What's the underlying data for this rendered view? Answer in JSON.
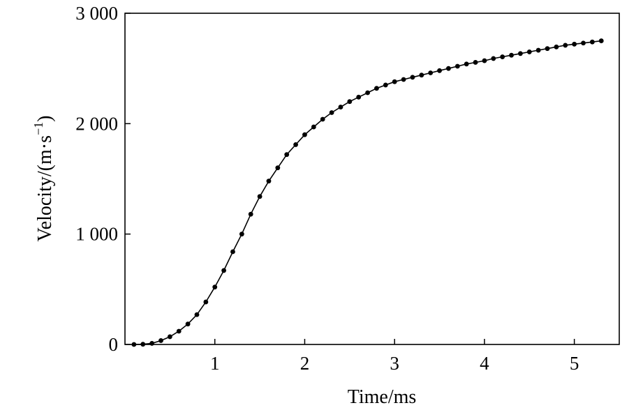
{
  "chart_data": {
    "type": "line",
    "title": "",
    "xlabel": "Time/ms",
    "ylabel": "Velocity/(m·s",
    "ylabel_sup": "−1",
    "ylabel_close": ")",
    "xlim": [
      0,
      5.5
    ],
    "ylim": [
      0,
      3000
    ],
    "x_ticks": [
      1,
      2,
      3,
      4,
      5
    ],
    "x_tick_labels": [
      "1",
      "2",
      "3",
      "4",
      "5"
    ],
    "y_ticks": [
      0,
      1000,
      2000,
      3000
    ],
    "y_tick_labels": [
      "0",
      "1 000",
      "2 000",
      "3 000"
    ],
    "grid": false,
    "legend": "none",
    "series": [
      {
        "color": "#000000",
        "marker": "filled-circle",
        "x": [
          0.1,
          0.2,
          0.3,
          0.4,
          0.5,
          0.6,
          0.7,
          0.8,
          0.9,
          1.0,
          1.1,
          1.2,
          1.3,
          1.4,
          1.5,
          1.6,
          1.7,
          1.8,
          1.9,
          2.0,
          2.1,
          2.2,
          2.3,
          2.4,
          2.5,
          2.6,
          2.7,
          2.8,
          2.9,
          3.0,
          3.1,
          3.2,
          3.3,
          3.4,
          3.5,
          3.6,
          3.7,
          3.8,
          3.9,
          4.0,
          4.1,
          4.2,
          4.3,
          4.4,
          4.5,
          4.6,
          4.7,
          4.8,
          4.9,
          5.0,
          5.1,
          5.2,
          5.3
        ],
        "y": [
          0,
          2,
          10,
          35,
          70,
          120,
          185,
          270,
          385,
          520,
          670,
          840,
          1000,
          1180,
          1340,
          1480,
          1600,
          1720,
          1810,
          1900,
          1970,
          2040,
          2100,
          2150,
          2200,
          2240,
          2280,
          2320,
          2350,
          2380,
          2400,
          2420,
          2440,
          2460,
          2480,
          2500,
          2520,
          2540,
          2555,
          2570,
          2590,
          2605,
          2620,
          2635,
          2650,
          2665,
          2680,
          2695,
          2710,
          2720,
          2730,
          2740,
          2750
        ]
      }
    ]
  }
}
